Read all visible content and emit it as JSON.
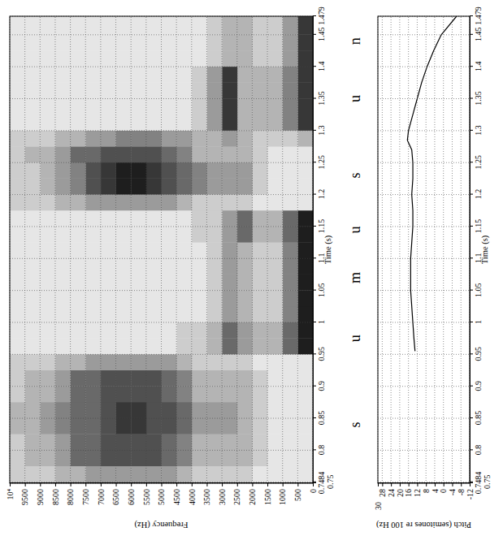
{
  "chart_data": [
    {
      "type": "heatmap",
      "x_label": "Time (s)",
      "y_label": "Frequency (Hz)",
      "xlim": [
        0.7484,
        1.479
      ],
      "ylim": [
        0,
        10000
      ],
      "xticks": [
        0.7484,
        0.75,
        0.8,
        0.85,
        0.9,
        0.95,
        1,
        1.05,
        1.1,
        1.15,
        1.2,
        1.25,
        1.3,
        1.35,
        1.4,
        1.45,
        1.479
      ],
      "yticks": [
        0,
        500,
        1000,
        1500,
        2000,
        2500,
        3000,
        3500,
        4000,
        4500,
        5000,
        5500,
        6000,
        6500,
        7000,
        7500,
        8000,
        8500,
        9000,
        9500,
        {
          "value": 10000,
          "label": "10⁴"
        }
      ],
      "grid": true,
      "x_edges": [
        0.7484,
        0.775,
        0.8,
        0.825,
        0.85,
        0.875,
        0.9,
        0.925,
        0.95,
        0.975,
        1.0,
        1.025,
        1.05,
        1.075,
        1.1,
        1.125,
        1.15,
        1.175,
        1.2,
        1.225,
        1.25,
        1.275,
        1.3,
        1.325,
        1.35,
        1.375,
        1.4,
        1.425,
        1.45,
        1.475,
        1.479
      ],
      "y_edges": [
        0,
        500,
        1000,
        1500,
        2000,
        2500,
        3000,
        3500,
        4000,
        4500,
        5000,
        5500,
        6000,
        6500,
        7000,
        7500,
        8000,
        8500,
        9000,
        9500,
        10000
      ],
      "cells": [
        [
          1,
          1,
          1,
          1,
          2,
          2,
          2,
          2,
          3,
          4,
          4,
          4,
          4,
          4,
          4,
          3,
          3,
          2,
          2,
          2
        ],
        [
          1,
          1,
          1,
          2,
          3,
          3,
          3,
          3,
          5,
          6,
          7,
          7,
          7,
          7,
          6,
          6,
          4,
          3,
          3,
          2
        ],
        [
          1,
          1,
          1,
          2,
          3,
          3,
          3,
          3,
          5,
          6,
          7,
          7,
          7,
          7,
          6,
          6,
          4,
          3,
          3,
          2
        ],
        [
          1,
          1,
          1,
          2,
          3,
          4,
          4,
          4,
          6,
          7,
          7,
          8,
          8,
          7,
          6,
          6,
          5,
          4,
          3,
          3
        ],
        [
          1,
          1,
          1,
          2,
          3,
          4,
          4,
          4,
          6,
          7,
          7,
          8,
          8,
          7,
          6,
          6,
          5,
          4,
          3,
          3
        ],
        [
          1,
          1,
          1,
          2,
          3,
          3,
          3,
          3,
          5,
          6,
          7,
          7,
          7,
          7,
          6,
          6,
          4,
          3,
          3,
          2
        ],
        [
          1,
          1,
          1,
          2,
          3,
          3,
          3,
          3,
          5,
          6,
          7,
          7,
          7,
          7,
          6,
          6,
          4,
          3,
          3,
          2
        ],
        [
          1,
          1,
          1,
          1,
          2,
          2,
          2,
          2,
          3,
          4,
          4,
          4,
          4,
          4,
          4,
          3,
          3,
          2,
          2,
          2
        ],
        [
          9,
          6,
          3,
          3,
          4,
          6,
          3,
          2,
          2,
          1,
          1,
          1,
          1,
          1,
          1,
          1,
          1,
          1,
          1,
          1
        ],
        [
          9,
          6,
          3,
          3,
          4,
          6,
          3,
          2,
          2,
          1,
          1,
          1,
          1,
          1,
          1,
          1,
          1,
          1,
          1,
          1
        ],
        [
          9,
          5,
          2,
          2,
          3,
          4,
          2,
          1,
          1,
          1,
          1,
          1,
          1,
          1,
          1,
          1,
          1,
          1,
          1,
          1
        ],
        [
          9,
          5,
          2,
          2,
          3,
          4,
          2,
          1,
          1,
          1,
          1,
          1,
          1,
          1,
          1,
          1,
          1,
          1,
          1,
          1
        ],
        [
          9,
          5,
          2,
          2,
          3,
          4,
          2,
          1,
          1,
          1,
          1,
          1,
          1,
          1,
          1,
          1,
          1,
          1,
          1,
          1
        ],
        [
          9,
          5,
          2,
          2,
          3,
          4,
          2,
          1,
          1,
          1,
          1,
          1,
          1,
          1,
          1,
          1,
          1,
          1,
          1,
          1
        ],
        [
          9,
          5,
          2,
          2,
          3,
          4,
          2,
          1,
          1,
          1,
          1,
          1,
          1,
          1,
          1,
          1,
          1,
          1,
          1,
          1
        ],
        [
          9,
          6,
          3,
          3,
          6,
          4,
          2,
          2,
          1,
          1,
          1,
          1,
          1,
          1,
          1,
          1,
          1,
          1,
          1,
          1
        ],
        [
          9,
          6,
          3,
          3,
          6,
          4,
          2,
          2,
          1,
          1,
          1,
          1,
          1,
          1,
          1,
          1,
          1,
          1,
          1,
          1
        ],
        [
          1,
          1,
          1,
          1,
          2,
          2,
          2,
          2,
          3,
          4,
          4,
          4,
          4,
          4,
          4,
          3,
          3,
          2,
          2,
          2
        ],
        [
          1,
          1,
          1,
          2,
          4,
          4,
          4,
          5,
          6,
          7,
          8,
          9,
          9,
          8,
          7,
          5,
          4,
          3,
          2,
          2
        ],
        [
          1,
          1,
          1,
          2,
          4,
          4,
          4,
          5,
          6,
          7,
          8,
          9,
          9,
          8,
          7,
          5,
          4,
          3,
          2,
          2
        ],
        [
          1,
          1,
          1,
          2,
          3,
          3,
          3,
          3,
          5,
          6,
          7,
          7,
          7,
          7,
          6,
          6,
          4,
          3,
          3,
          2
        ],
        [
          3,
          2,
          2,
          2,
          3,
          4,
          3,
          3,
          4,
          4,
          5,
          5,
          5,
          4,
          4,
          3,
          3,
          2,
          2,
          2
        ],
        [
          8,
          5,
          3,
          3,
          3,
          8,
          4,
          2,
          1,
          1,
          1,
          1,
          1,
          1,
          1,
          1,
          1,
          1,
          1,
          1
        ],
        [
          8,
          5,
          3,
          3,
          3,
          8,
          4,
          2,
          1,
          1,
          1,
          1,
          1,
          1,
          1,
          1,
          1,
          1,
          1,
          1
        ],
        [
          8,
          5,
          3,
          3,
          3,
          8,
          4,
          2,
          1,
          1,
          1,
          1,
          1,
          1,
          1,
          1,
          1,
          1,
          1,
          1
        ],
        [
          8,
          5,
          3,
          3,
          3,
          8,
          4,
          2,
          1,
          1,
          1,
          1,
          1,
          1,
          1,
          1,
          1,
          1,
          1,
          1
        ],
        [
          8,
          4,
          2,
          2,
          3,
          3,
          2,
          1,
          1,
          1,
          1,
          1,
          1,
          1,
          1,
          1,
          1,
          1,
          1,
          1
        ],
        [
          8,
          4,
          2,
          2,
          3,
          3,
          2,
          1,
          1,
          1,
          1,
          1,
          1,
          1,
          1,
          1,
          1,
          1,
          1,
          1
        ],
        [
          8,
          4,
          2,
          2,
          3,
          3,
          2,
          1,
          1,
          1,
          1,
          1,
          1,
          1,
          1,
          1,
          1,
          1,
          1,
          1
        ],
        [
          8,
          4,
          2,
          2,
          3,
          3,
          2,
          1,
          1,
          1,
          1,
          1,
          1,
          1,
          1,
          1,
          1,
          1,
          1,
          1
        ]
      ],
      "annotations": [
        {
          "text": "s",
          "x": 0.84
        },
        {
          "text": "u",
          "x": 0.975
        },
        {
          "text": "m",
          "x": 1.07
        },
        {
          "text": "u",
          "x": 1.145
        },
        {
          "text": "s",
          "x": 1.23
        },
        {
          "text": "u",
          "x": 1.35
        },
        {
          "text": "n",
          "x": 1.44
        }
      ]
    },
    {
      "type": "line",
      "x_label": "Time (s)",
      "y_label": "Pitch (semitones re 100 Hz)",
      "xlim": [
        0.7484,
        1.479
      ],
      "ylim": [
        -12,
        30
      ],
      "xticks": [
        0.7484,
        0.75,
        0.8,
        0.85,
        0.9,
        0.95,
        1,
        1.05,
        1.1,
        1.15,
        1.2,
        1.25,
        1.3,
        1.35,
        1.4,
        1.45,
        1.479
      ],
      "yticks": [
        -12,
        -8,
        -4,
        0,
        4,
        8,
        12,
        16,
        20,
        24,
        28,
        30
      ],
      "grid": true,
      "color": "#000000",
      "x": [
        0.955,
        0.975,
        1.0,
        1.025,
        1.05,
        1.075,
        1.1,
        1.125,
        1.15,
        1.175,
        1.2,
        1.225,
        1.25,
        1.27,
        1.285,
        1.3,
        1.325,
        1.35,
        1.375,
        1.4,
        1.425,
        1.45,
        1.479
      ],
      "values": [
        13,
        13.5,
        14,
        14.5,
        15,
        15,
        15,
        14.5,
        14,
        14,
        14.5,
        14,
        14,
        14.5,
        16.5,
        16,
        14,
        12,
        10,
        7.5,
        4.5,
        1,
        -6
      ]
    }
  ]
}
